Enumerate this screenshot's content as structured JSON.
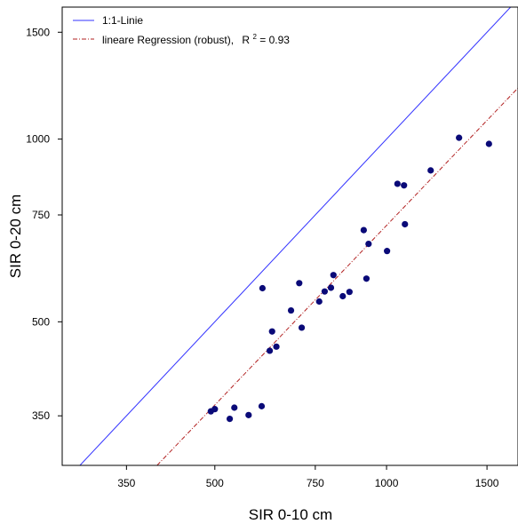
{
  "chart_data": {
    "type": "scatter",
    "xlabel": "SIR  0-10 cm",
    "ylabel": "SIR  0-20 cm",
    "xscale": "log",
    "yscale": "log",
    "xlim": [
      270,
      1700
    ],
    "ylim": [
      290,
      1650
    ],
    "xticks": [
      350,
      500,
      750,
      1000,
      1500
    ],
    "yticks": [
      350,
      500,
      750,
      1000,
      1500
    ],
    "grid": false,
    "legend_position": "top-left",
    "legend": {
      "identity_label": "1:1-Linie",
      "regression_label": "lineare Regression (robust),",
      "r2_prefix": "R",
      "r2_sup": "2",
      "r2_suffix": " = 0.93"
    },
    "colors": {
      "points": "#0a0a78",
      "identity_line": "#3333ff",
      "regression_line": "#b22222"
    },
    "identity_line": {
      "slope_loglog": 1.0
    },
    "regression_line": {
      "from": [
        396,
        290
      ],
      "to": [
        1700,
        1214
      ]
    },
    "points": [
      {
        "x": 492,
        "y": 356
      },
      {
        "x": 500,
        "y": 359
      },
      {
        "x": 531,
        "y": 346
      },
      {
        "x": 541,
        "y": 361
      },
      {
        "x": 573,
        "y": 351
      },
      {
        "x": 604,
        "y": 363
      },
      {
        "x": 606,
        "y": 568
      },
      {
        "x": 624,
        "y": 448
      },
      {
        "x": 630,
        "y": 482
      },
      {
        "x": 641,
        "y": 455
      },
      {
        "x": 680,
        "y": 522
      },
      {
        "x": 703,
        "y": 579
      },
      {
        "x": 710,
        "y": 489
      },
      {
        "x": 762,
        "y": 540
      },
      {
        "x": 779,
        "y": 561
      },
      {
        "x": 799,
        "y": 569
      },
      {
        "x": 807,
        "y": 597
      },
      {
        "x": 838,
        "y": 551
      },
      {
        "x": 861,
        "y": 560
      },
      {
        "x": 912,
        "y": 708
      },
      {
        "x": 922,
        "y": 589
      },
      {
        "x": 930,
        "y": 672
      },
      {
        "x": 1002,
        "y": 654
      },
      {
        "x": 1045,
        "y": 844
      },
      {
        "x": 1073,
        "y": 839
      },
      {
        "x": 1077,
        "y": 724
      },
      {
        "x": 1195,
        "y": 888
      },
      {
        "x": 1340,
        "y": 1005
      },
      {
        "x": 1512,
        "y": 982
      }
    ]
  }
}
